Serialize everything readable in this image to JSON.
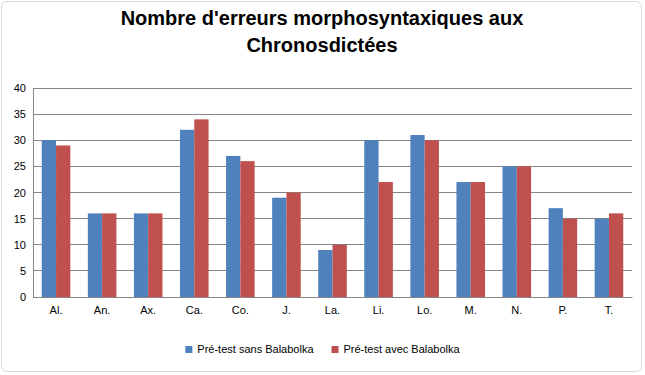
{
  "chart_data": {
    "type": "bar",
    "title": "Nombre d'erreurs morphosyntaxiques aux Chronosdictées",
    "categories": [
      "Al.",
      "An.",
      "Ax.",
      "Ca.",
      "Co.",
      "J.",
      "La.",
      "Li.",
      "Lo.",
      "M.",
      "N.",
      "P.",
      "T."
    ],
    "series": [
      {
        "name": "Pré-test sans Balabolka",
        "color": "#4f81bd",
        "values": [
          30,
          16,
          16,
          32,
          27,
          19,
          9,
          30,
          31,
          22,
          25,
          17,
          15
        ]
      },
      {
        "name": "Pré-test avec Balabolka",
        "color": "#c0504d",
        "values": [
          29,
          16,
          16,
          34,
          26,
          20,
          10,
          22,
          30,
          22,
          25,
          15,
          16
        ]
      }
    ],
    "ylim": [
      0,
      40
    ],
    "yticks": [
      0,
      5,
      10,
      15,
      20,
      25,
      30,
      35,
      40
    ],
    "grid": true,
    "legend": "bottom"
  }
}
